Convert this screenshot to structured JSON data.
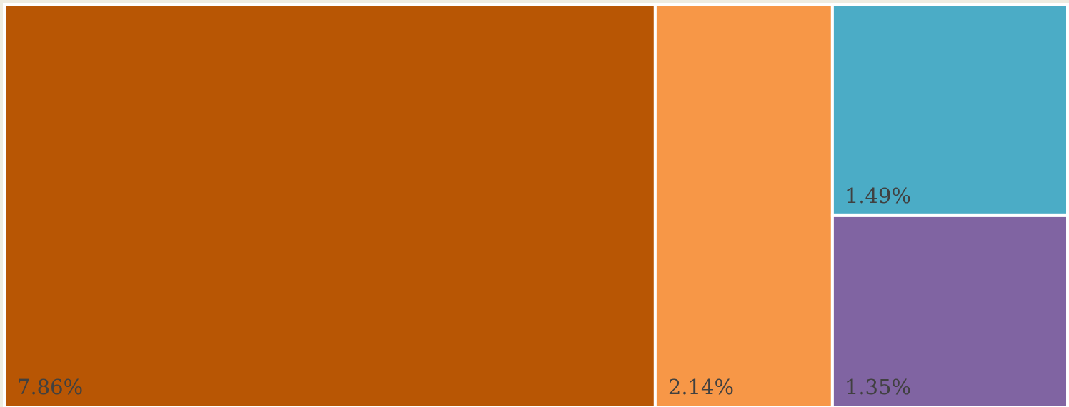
{
  "chart_data": {
    "type": "treemap",
    "title": "",
    "items": [
      {
        "label": "7.86%",
        "value": 7.86,
        "color": "#B85604"
      },
      {
        "label": "2.14%",
        "value": 2.14,
        "color": "#F79747"
      },
      {
        "label": "1.49%",
        "value": 1.49,
        "color": "#4BACC6"
      },
      {
        "label": "1.35%",
        "value": 1.35,
        "color": "#8064A2"
      }
    ],
    "frame_color": "#EEECE1"
  }
}
